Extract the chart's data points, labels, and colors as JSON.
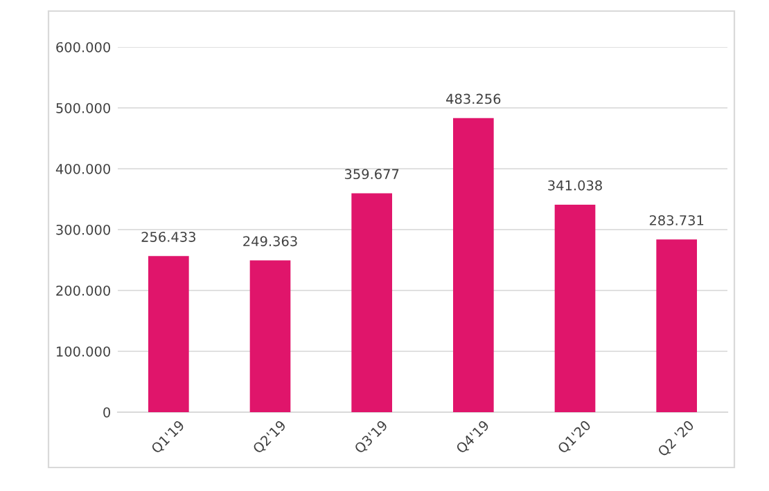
{
  "chart_data": {
    "type": "bar",
    "categories": [
      "Q1'19",
      "Q2'19",
      "Q3'19",
      "Q4'19",
      "Q1'20",
      "Q2 '20"
    ],
    "values": [
      256433,
      249363,
      359677,
      483256,
      341038,
      283731
    ],
    "value_labels": [
      "256.433",
      "249.363",
      "359.677",
      "483.256",
      "341.038",
      "283.731"
    ],
    "color": "#e0156b",
    "ylim": [
      0,
      600000
    ],
    "yticks": [
      {
        "value": 0,
        "label": "0"
      },
      {
        "value": 100000,
        "label": "100.000"
      },
      {
        "value": 200000,
        "label": "200.000"
      },
      {
        "value": 300000,
        "label": "300.000"
      },
      {
        "value": 400000,
        "label": "400.000"
      },
      {
        "value": 500000,
        "label": "500.000"
      },
      {
        "value": 600000,
        "label": "600.000"
      }
    ],
    "grid": "y"
  }
}
